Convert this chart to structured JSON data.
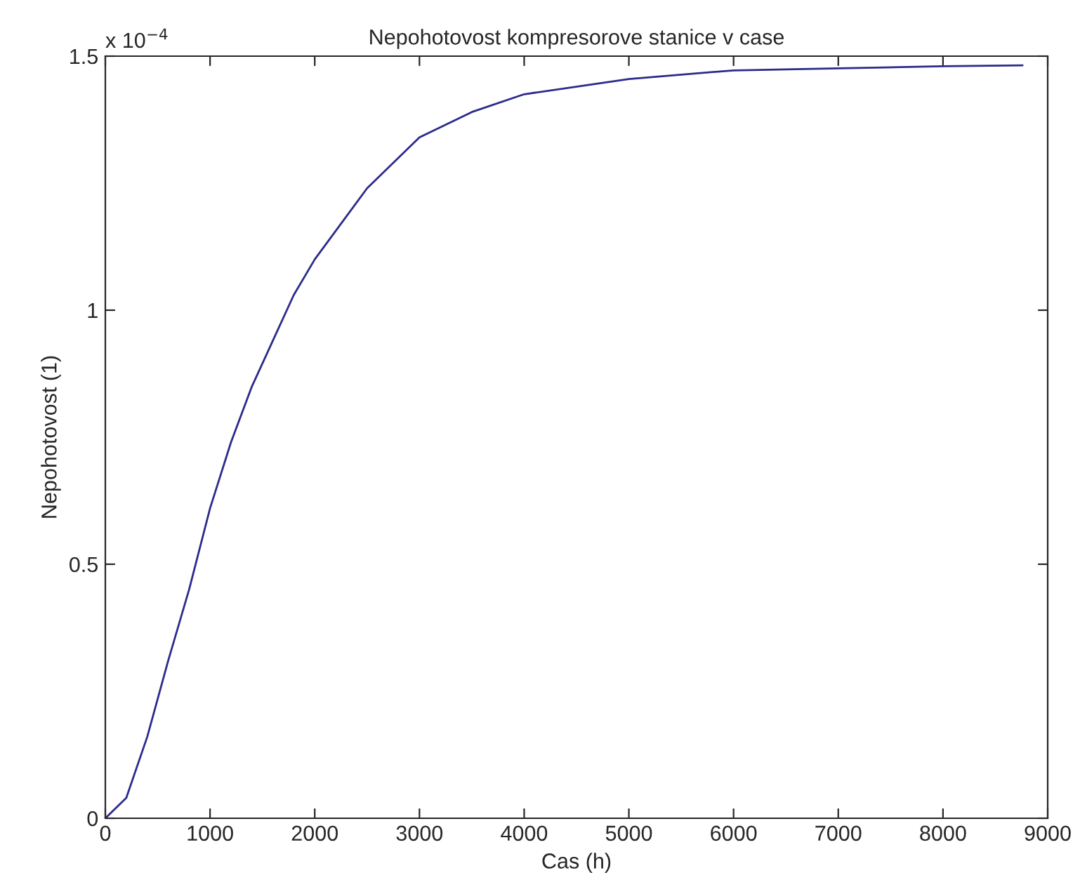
{
  "chart_data": {
    "type": "line",
    "title": "Nepohotovost kompresorove stanice v case",
    "xlabel": "Cas (h)",
    "ylabel": "Nepohotovost (1)",
    "annotations": [
      "x 10$^{−4}$"
    ],
    "x": [
      0,
      200,
      400,
      600,
      800,
      1000,
      1200,
      1400,
      1600,
      1800,
      2000,
      2500,
      3000,
      3500,
      4000,
      5000,
      6000,
      7000,
      8000,
      8760
    ],
    "series": [
      {
        "color": "#2b2b8c",
        "values": [
          0,
          0.04,
          0.16,
          0.31,
          0.45,
          0.61,
          0.74,
          0.85,
          0.94,
          1.03,
          1.1,
          1.24,
          1.34,
          1.39,
          1.425,
          1.455,
          1.472,
          1.476,
          1.48,
          1.482
        ]
      }
    ],
    "xlim": [
      0,
      9000
    ],
    "xticks": [
      0,
      1000,
      2000,
      3000,
      4000,
      5000,
      6000,
      7000,
      8000,
      9000
    ],
    "ylim": [
      0,
      1.5
    ],
    "yticks": [
      0,
      0.5,
      1,
      1.5
    ],
    "grid": false,
    "marker": "none",
    "line_style": "solid"
  }
}
